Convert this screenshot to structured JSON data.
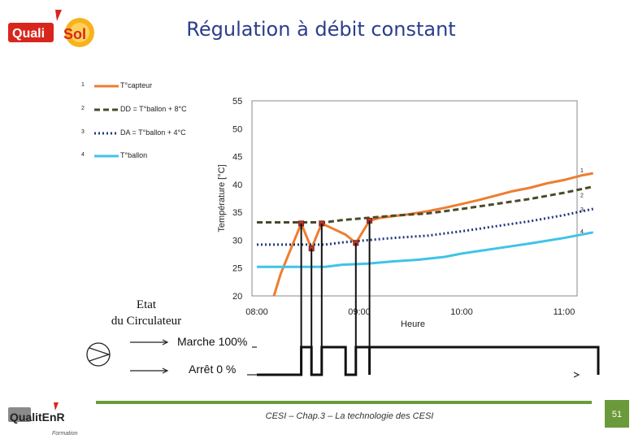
{
  "header": {
    "brand_left": "Quali",
    "brand_right": "Sol",
    "title": "Régulation à débit constant"
  },
  "legend": {
    "items": [
      {
        "num": "1",
        "label": "T°capteur",
        "color": "#ee7d2f",
        "style": "solid"
      },
      {
        "num": "2",
        "label": "DD = T°ballon + 8°C",
        "color": "#4a4a2a",
        "style": "dash"
      },
      {
        "num": "3",
        "label": "DA = T°ballon + 4°C",
        "color": "#1f3a7a",
        "style": "dot"
      },
      {
        "num": "4",
        "label": "T°ballon",
        "color": "#3fc3e8",
        "style": "solid"
      }
    ]
  },
  "chart_data": {
    "type": "line",
    "ylabel": "Température [°C]",
    "xlabel": "Heure",
    "ylim": [
      20,
      55
    ],
    "xlim": [
      480,
      680
    ],
    "y_ticks": [
      20,
      25,
      30,
      35,
      40,
      45,
      50,
      55
    ],
    "x_ticks": [
      {
        "value": 480,
        "label": "08:00"
      },
      {
        "value": 540,
        "label": "09:00"
      },
      {
        "value": 600,
        "label": "10:00"
      },
      {
        "value": 660,
        "label": "11:00"
      }
    ],
    "series": [
      {
        "name": "1",
        "color": "#ee7d2f",
        "style": "solid",
        "x": [
          490,
          494,
          500,
          506,
          512,
          518,
          525,
          532,
          538,
          541,
          546,
          552,
          560,
          570,
          580,
          590,
          600,
          610,
          620,
          630,
          640,
          650,
          660,
          670,
          677
        ],
        "y": [
          20,
          24,
          28.5,
          33,
          28.5,
          33,
          32,
          31,
          29.5,
          31,
          33.5,
          34,
          34.3,
          34.7,
          35.2,
          35.8,
          36.5,
          37.2,
          38,
          38.8,
          39.4,
          40.2,
          40.8,
          41.6,
          42
        ]
      },
      {
        "name": "2",
        "color": "#4a4a2a",
        "style": "dash",
        "x": [
          480,
          520,
          530,
          545,
          560,
          580,
          600,
          620,
          640,
          660,
          677
        ],
        "y": [
          33.2,
          33.2,
          33.6,
          34.0,
          34.4,
          34.8,
          35.6,
          36.5,
          37.4,
          38.5,
          39.6
        ]
      },
      {
        "name": "3",
        "color": "#1f3a7a",
        "style": "dot",
        "x": [
          480,
          520,
          530,
          545,
          560,
          580,
          600,
          620,
          640,
          660,
          677
        ],
        "y": [
          29.2,
          29.2,
          29.6,
          30.0,
          30.4,
          30.8,
          31.6,
          32.5,
          33.4,
          34.5,
          35.6
        ]
      },
      {
        "name": "4",
        "color": "#3fc3e8",
        "style": "solid",
        "x": [
          480,
          520,
          530,
          545,
          560,
          575,
          590,
          600,
          620,
          640,
          660,
          677
        ],
        "y": [
          25.2,
          25.2,
          25.6,
          25.8,
          26.2,
          26.5,
          27.0,
          27.6,
          28.5,
          29.4,
          30.4,
          31.4
        ]
      }
    ],
    "markers": [
      {
        "x": 506,
        "y": 33
      },
      {
        "x": 512,
        "y": 28.5
      },
      {
        "x": 518,
        "y": 33
      },
      {
        "x": 538,
        "y": 29.5
      },
      {
        "x": 546,
        "y": 33.5
      }
    ],
    "series_end_labels": [
      "1",
      "2",
      "3",
      "4"
    ]
  },
  "pump_state": {
    "label_line1": "Etat",
    "label_line2": "du Circulateur",
    "on_label": "Marche 100%",
    "off_label": "Arrêt 0 %",
    "on_intervals": [
      [
        506,
        512
      ],
      [
        518,
        532
      ],
      [
        538,
        546
      ],
      [
        546,
        680
      ]
    ]
  },
  "footer": {
    "text": "CESI – Chap.3 – La technologie des CESI",
    "brand": "QualitEnR",
    "brand_sub": "Formation",
    "page_number": "51"
  }
}
